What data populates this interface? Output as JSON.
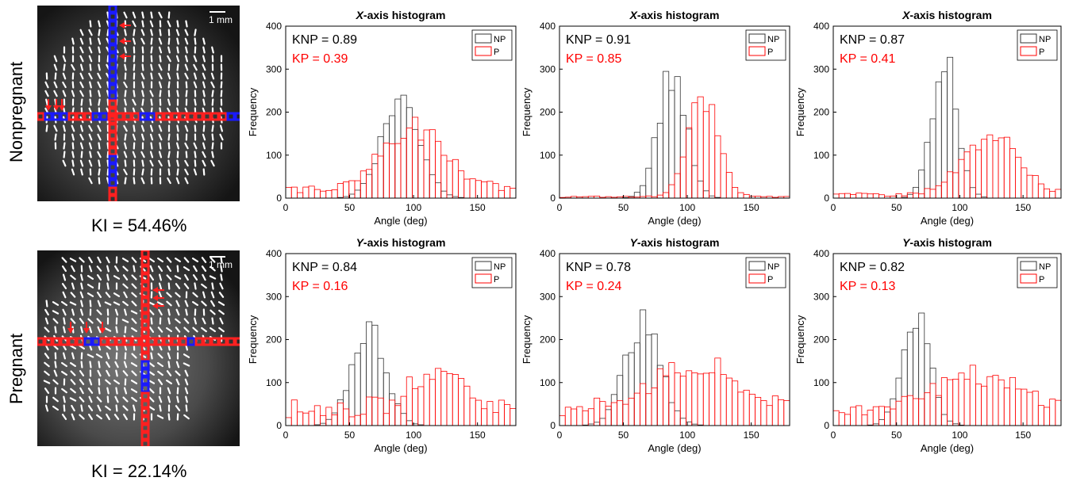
{
  "rows": [
    {
      "label": "Nonpregnant",
      "ki": "KI = 54.46%",
      "scale_bar": "1 mm"
    },
    {
      "label": "Pregnant",
      "ki": "KI = 22.14%",
      "scale_bar": "1 mm"
    }
  ],
  "colors": {
    "np": "#333333",
    "p": "#ff0000",
    "blue": "#1a1aff",
    "red": "#ff2020"
  },
  "chart_data": [
    {
      "type": "bar",
      "title": "X-axis histogram",
      "title_axis": "X",
      "xlabel": "Angle (deg)",
      "ylabel": "Frequency",
      "xlim": [
        0,
        180
      ],
      "ylim": [
        0,
        400
      ],
      "xticks": [
        "0",
        "50",
        "100",
        "150"
      ],
      "yticks": [
        "0",
        "100",
        "200",
        "300",
        "400"
      ],
      "legend": [
        "NP",
        "P"
      ],
      "legend_position": "top-right",
      "annotations": {
        "knp": "KNP = 0.89",
        "kp": "KP = 0.39"
      },
      "series": [
        {
          "name": "NP",
          "center": 90,
          "sigma": 15,
          "peak": 230
        },
        {
          "name": "P",
          "center": 100,
          "sigma": 25,
          "peak": 140,
          "baseline": 20
        }
      ]
    },
    {
      "type": "bar",
      "title": "X-axis histogram",
      "title_axis": "X",
      "xlabel": "Angle (deg)",
      "ylabel": "Frequency",
      "xlim": [
        0,
        180
      ],
      "ylim": [
        0,
        400
      ],
      "xticks": [
        "0",
        "50",
        "100",
        "150"
      ],
      "yticks": [
        "0",
        "100",
        "200",
        "300",
        "400"
      ],
      "legend": [
        "NP",
        "P"
      ],
      "legend_position": "top-right",
      "annotations": {
        "knp": "KNP = 0.91",
        "kp": "KP = 0.85"
      },
      "series": [
        {
          "name": "NP",
          "center": 88,
          "sigma": 11,
          "peak": 290
        },
        {
          "name": "P",
          "center": 112,
          "sigma": 12,
          "peak": 230,
          "baseline": 3
        }
      ]
    },
    {
      "type": "bar",
      "title": "X-axis histogram",
      "title_axis": "X",
      "xlabel": "Angle (deg)",
      "ylabel": "Frequency",
      "xlim": [
        0,
        180
      ],
      "ylim": [
        0,
        400
      ],
      "xticks": [
        "0",
        "50",
        "100",
        "150"
      ],
      "yticks": [
        "0",
        "100",
        "200",
        "300",
        "400"
      ],
      "legend": [
        "NP",
        "P"
      ],
      "legend_position": "top-right",
      "annotations": {
        "knp": "KNP = 0.87",
        "kp": "KP = 0.41"
      },
      "series": [
        {
          "name": "NP",
          "center": 88,
          "sigma": 10,
          "peak": 325
        },
        {
          "name": "P",
          "center": 125,
          "sigma": 22,
          "peak": 135,
          "baseline": 8
        }
      ]
    },
    {
      "type": "bar",
      "title": "Y-axis histogram",
      "title_axis": "Y",
      "xlabel": "Angle (deg)",
      "ylabel": "Frequency",
      "xlim": [
        0,
        180
      ],
      "ylim": [
        0,
        400
      ],
      "xticks": [
        "0",
        "50",
        "100",
        "150"
      ],
      "yticks": [
        "0",
        "100",
        "200",
        "300",
        "400"
      ],
      "legend": [
        "NP",
        "P"
      ],
      "legend_position": "top-right",
      "annotations": {
        "knp": "KNP = 0.84",
        "kp": "KP = 0.16"
      },
      "series": [
        {
          "name": "NP",
          "center": 65,
          "sigma": 13,
          "peak": 228
        },
        {
          "name": "P",
          "center": 120,
          "sigma": 18,
          "peak": 100,
          "baseline": 40
        }
      ]
    },
    {
      "type": "bar",
      "title": "Y-axis histogram",
      "title_axis": "Y",
      "xlabel": "Angle (deg)",
      "ylabel": "Frequency",
      "xlim": [
        0,
        180
      ],
      "ylim": [
        0,
        400
      ],
      "xticks": [
        "0",
        "50",
        "100",
        "150"
      ],
      "yticks": [
        "0",
        "100",
        "200",
        "300",
        "400"
      ],
      "legend": [
        "NP",
        "P"
      ],
      "legend_position": "top-right",
      "annotations": {
        "knp": "KNP = 0.78",
        "kp": "KP = 0.24"
      },
      "series": [
        {
          "name": "NP",
          "center": 65,
          "sigma": 14,
          "peak": 235
        },
        {
          "name": "P",
          "center": 105,
          "sigma": 35,
          "peak": 100,
          "baseline": 35
        }
      ]
    },
    {
      "type": "bar",
      "title": "Y-axis histogram",
      "title_axis": "Y",
      "xlabel": "Angle (deg)",
      "ylabel": "Frequency",
      "xlim": [
        0,
        180
      ],
      "ylim": [
        0,
        400
      ],
      "xticks": [
        "0",
        "50",
        "100",
        "150"
      ],
      "yticks": [
        "0",
        "100",
        "200",
        "300",
        "400"
      ],
      "legend": [
        "NP",
        "P"
      ],
      "legend_position": "top-right",
      "annotations": {
        "knp": "KNP = 0.82",
        "kp": "KP = 0.13"
      },
      "series": [
        {
          "name": "NP",
          "center": 65,
          "sigma": 11,
          "peak": 255
        },
        {
          "name": "P",
          "center": 110,
          "sigma": 40,
          "peak": 80,
          "baseline": 30
        }
      ]
    }
  ]
}
